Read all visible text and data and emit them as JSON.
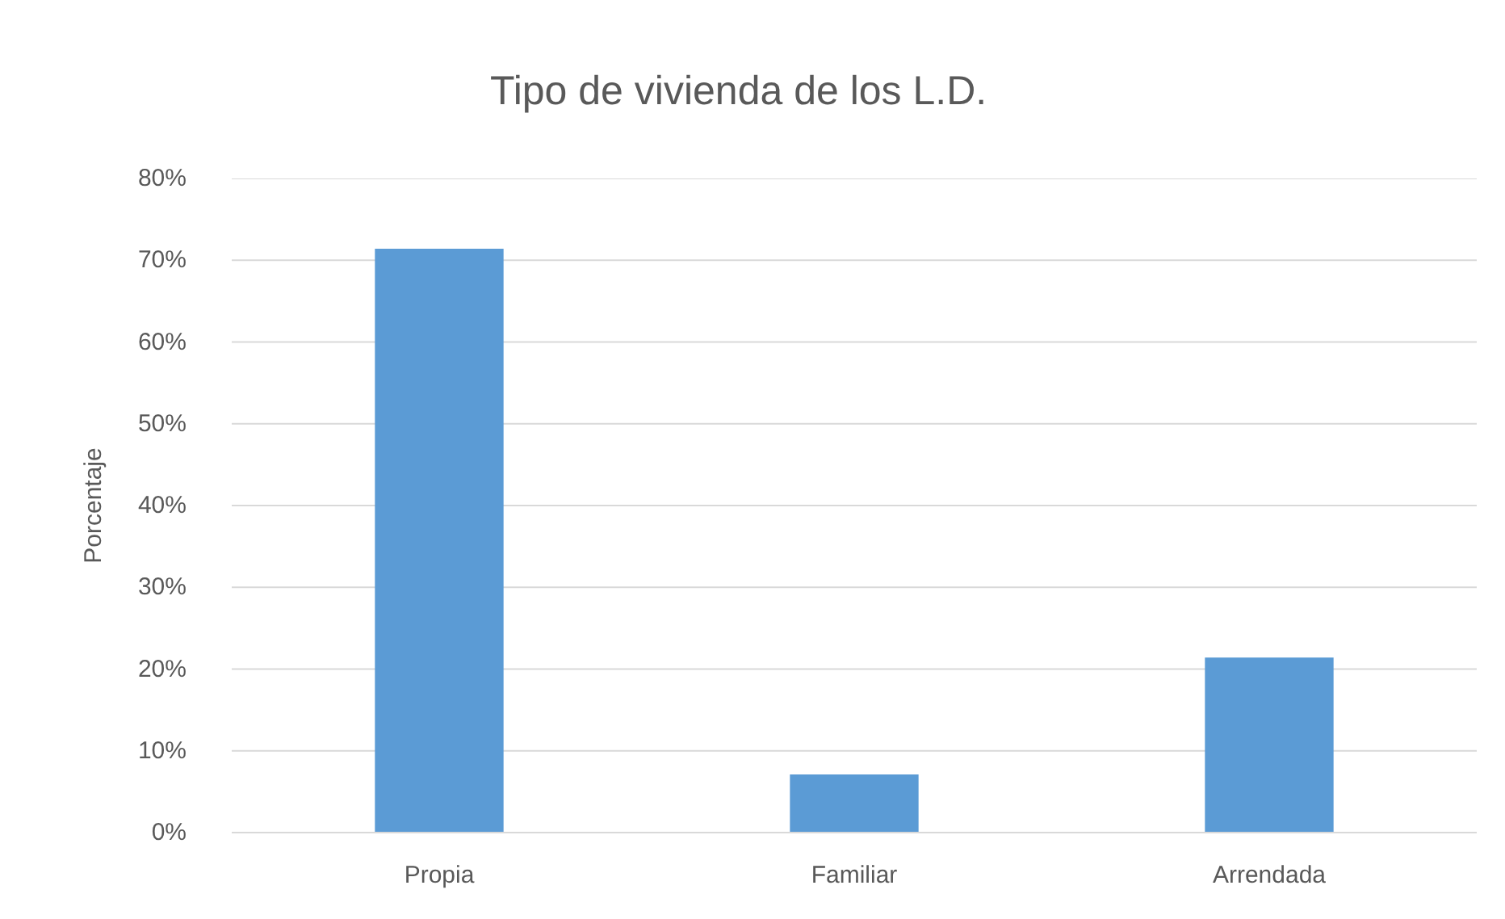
{
  "chart_data": {
    "type": "bar",
    "title": "Tipo de vivienda de los L.D.",
    "ylabel": "Porcentaje",
    "categories": [
      "Propia",
      "Familiar",
      "Arrendada"
    ],
    "values": [
      71.4,
      7.1,
      21.4
    ],
    "color": "#5b9bd5",
    "ylim": [
      0,
      80
    ],
    "yticks": [
      {
        "value": 0,
        "label": "0%"
      },
      {
        "value": 10,
        "label": "10%"
      },
      {
        "value": 20,
        "label": "20%"
      },
      {
        "value": 30,
        "label": "30%"
      },
      {
        "value": 40,
        "label": "40%"
      },
      {
        "value": 50,
        "label": "50%"
      },
      {
        "value": 60,
        "label": "60%"
      },
      {
        "value": 70,
        "label": "70%"
      },
      {
        "value": 80,
        "label": "80%"
      }
    ],
    "grid": "y"
  }
}
